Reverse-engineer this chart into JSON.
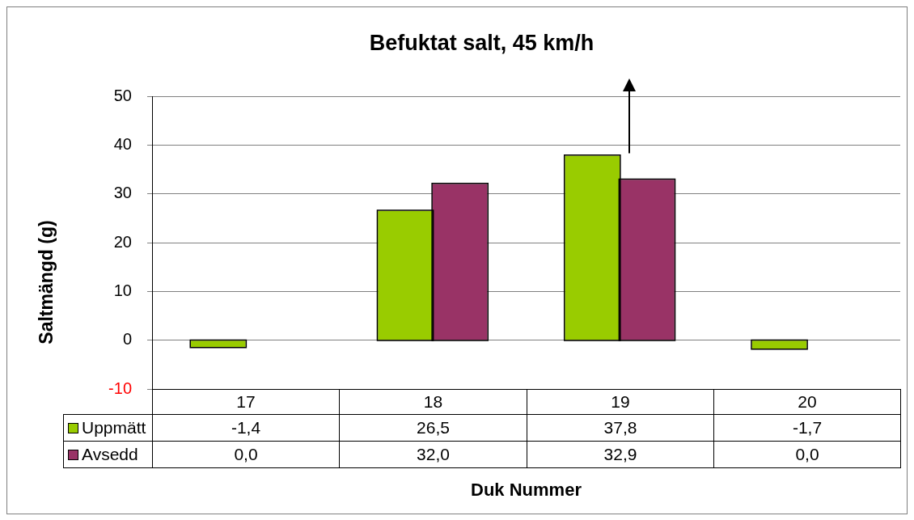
{
  "chart_data": {
    "type": "bar",
    "title": "Befuktat salt, 45 km/h",
    "ylabel": "Saltmängd (g)",
    "xlabel": "Duk Nummer",
    "categories": [
      "17",
      "18",
      "19",
      "20"
    ],
    "series": [
      {
        "name": "Uppmätt",
        "color": "#99cc00",
        "values": [
          -1.4,
          26.5,
          37.8,
          -1.7
        ],
        "value_labels": [
          "-1,4",
          "26,5",
          "37,8",
          "-1,7"
        ]
      },
      {
        "name": "Avsedd",
        "color": "#993366",
        "values": [
          0,
          32,
          32.9,
          0
        ],
        "value_labels": [
          "0,0",
          "32,0",
          "32,9",
          "0,0"
        ]
      }
    ],
    "ylim": [
      -10,
      50
    ],
    "yticks": [
      -10,
      0,
      10,
      20,
      30,
      40,
      50
    ],
    "grid": "y",
    "legend": "bottom"
  }
}
